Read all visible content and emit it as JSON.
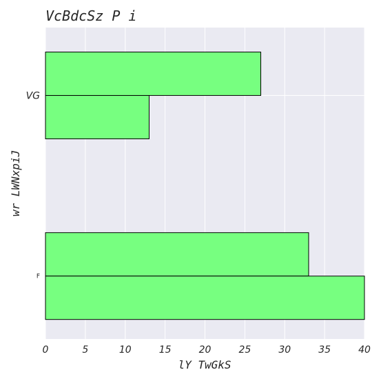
{
  "chart_data": {
    "type": "bar",
    "orientation": "horizontal",
    "title": "VcBdcSz P i",
    "xlabel": "lY TwGkS",
    "ylabel": "wr LWNxpiJ",
    "categories": [
      "VG",
      "F"
    ],
    "series": [
      {
        "values": [
          27,
          33
        ]
      },
      {
        "values": [
          13,
          40
        ]
      }
    ],
    "xlim": [
      0,
      40
    ],
    "xticks": [
      0,
      5,
      10,
      15,
      20,
      25,
      30,
      35,
      40
    ],
    "grid": true,
    "bar_color": "#77ff80",
    "bar_edge_color": "#000000",
    "plot_background": "#eaeaf2",
    "grid_color": "#ffffff"
  }
}
